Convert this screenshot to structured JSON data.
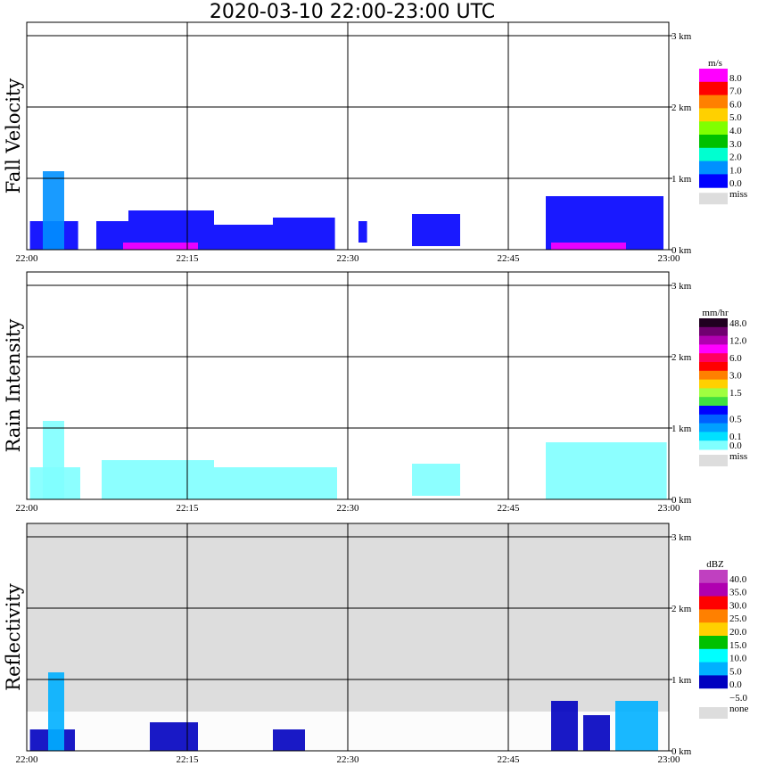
{
  "title": "2020-03-10   22:00-23:00 UTC",
  "chart_data": [
    {
      "type": "heatmap",
      "title": "Fall Velocity",
      "xlim": [
        "22:00",
        "23:00"
      ],
      "x_ticks": [
        "22:00",
        "22:15",
        "22:30",
        "22:45",
        "23:00"
      ],
      "ylim": [
        0,
        3
      ],
      "y_ticks": [
        "3 km",
        "2 km",
        "1 km",
        "0 km"
      ],
      "grid": true,
      "background": "#ffffff",
      "legend": {
        "unit": "m/s",
        "placement": "right",
        "bins": [
          {
            "label": "8.0",
            "color": "#ff00ff"
          },
          {
            "label": "7.0",
            "color": "#ff0000"
          },
          {
            "label": "6.0",
            "color": "#ff8000"
          },
          {
            "label": "5.0",
            "color": "#ffd000"
          },
          {
            "label": "4.0",
            "color": "#80ff00"
          },
          {
            "label": "3.0",
            "color": "#00c000"
          },
          {
            "label": "2.0",
            "color": "#00ffd0"
          },
          {
            "label": "1.0",
            "color": "#0090ff"
          },
          {
            "label": "0.0",
            "color": "#0000ff"
          }
        ],
        "missing": {
          "label": "miss",
          "color": "#dddddd"
        }
      },
      "regions": [
        {
          "t0": 0.3,
          "t1": 4.8,
          "h0": 0.0,
          "h1": 0.4,
          "level": "1.0",
          "color": "#0000ff"
        },
        {
          "t0": 1.5,
          "t1": 3.5,
          "h0": 0.0,
          "h1": 1.1,
          "level": "2.0",
          "color": "#0090ff"
        },
        {
          "t0": 6.5,
          "t1": 9.5,
          "h0": 0.0,
          "h1": 0.4,
          "level": "1.0",
          "color": "#0000ff"
        },
        {
          "t0": 9.5,
          "t1": 17.5,
          "h0": 0.0,
          "h1": 0.55,
          "level": "1.0",
          "color": "#0000ff"
        },
        {
          "t0": 17.5,
          "t1": 23.0,
          "h0": 0.0,
          "h1": 0.35,
          "level": "1.0",
          "color": "#0000ff"
        },
        {
          "t0": 23.0,
          "t1": 28.8,
          "h0": 0.0,
          "h1": 0.45,
          "level": "1.0",
          "color": "#0000ff"
        },
        {
          "t0": 31.0,
          "t1": 31.8,
          "h0": 0.1,
          "h1": 0.4,
          "level": "1.0",
          "color": "#0000ff"
        },
        {
          "t0": 36.0,
          "t1": 40.5,
          "h0": 0.05,
          "h1": 0.5,
          "level": "1.0",
          "color": "#0000ff"
        },
        {
          "t0": 48.5,
          "t1": 59.5,
          "h0": 0.0,
          "h1": 0.75,
          "level": "1.0",
          "color": "#0000ff"
        },
        {
          "t0": 9.0,
          "t1": 16.0,
          "h0": 0.0,
          "h1": 0.1,
          "level": "8.0",
          "color": "#ff00ff"
        },
        {
          "t0": 49.0,
          "t1": 56.0,
          "h0": 0.0,
          "h1": 0.1,
          "level": "8.0",
          "color": "#ff00ff"
        }
      ]
    },
    {
      "type": "heatmap",
      "title": "Rain Intensity",
      "xlim": [
        "22:00",
        "23:00"
      ],
      "x_ticks": [
        "22:00",
        "22:15",
        "22:30",
        "22:45",
        "23:00"
      ],
      "ylim": [
        0,
        3
      ],
      "y_ticks": [
        "3 km",
        "2 km",
        "1 km",
        "0 km"
      ],
      "grid": true,
      "background": "#ffffff",
      "legend": {
        "unit": "mm/hr",
        "placement": "right",
        "bins": [
          {
            "label": "48.0",
            "color": "#200020"
          },
          {
            "label": "",
            "color": "#700070"
          },
          {
            "label": "12.0",
            "color": "#b000b0"
          },
          {
            "label": "",
            "color": "#ff00ff"
          },
          {
            "label": "6.0",
            "color": "#ff0060"
          },
          {
            "label": "",
            "color": "#ff0000"
          },
          {
            "label": "3.0",
            "color": "#ff8000"
          },
          {
            "label": "",
            "color": "#ffd000"
          },
          {
            "label": "1.5",
            "color": "#a0ff40"
          },
          {
            "label": "",
            "color": "#40e040"
          },
          {
            "label": "",
            "color": "#0000ff"
          },
          {
            "label": "0.5",
            "color": "#0060ff"
          },
          {
            "label": "",
            "color": "#00a0ff"
          },
          {
            "label": "0.1",
            "color": "#00e0ff"
          },
          {
            "label": "0.0",
            "color": "#80ffff"
          }
        ],
        "missing": {
          "label": "miss",
          "color": "#dddddd"
        }
      },
      "regions": [
        {
          "t0": 0.3,
          "t1": 5.0,
          "h0": 0.0,
          "h1": 0.45,
          "level": "0.1",
          "color": "#80ffff"
        },
        {
          "t0": 1.5,
          "t1": 3.5,
          "h0": 0.0,
          "h1": 1.1,
          "level": "0.1",
          "color": "#80ffff"
        },
        {
          "t0": 7.0,
          "t1": 17.5,
          "h0": 0.0,
          "h1": 0.55,
          "level": "0.1",
          "color": "#80ffff"
        },
        {
          "t0": 17.5,
          "t1": 29.0,
          "h0": 0.0,
          "h1": 0.45,
          "level": "0.1",
          "color": "#80ffff"
        },
        {
          "t0": 36.0,
          "t1": 40.5,
          "h0": 0.05,
          "h1": 0.5,
          "level": "0.1",
          "color": "#80ffff"
        },
        {
          "t0": 48.5,
          "t1": 59.8,
          "h0": 0.0,
          "h1": 0.8,
          "level": "0.1",
          "color": "#80ffff"
        }
      ]
    },
    {
      "type": "heatmap",
      "title": "Reflectivity",
      "xlim": [
        "22:00",
        "23:00"
      ],
      "x_ticks": [
        "22:00",
        "22:15",
        "22:30",
        "22:45",
        "23:00"
      ],
      "ylim": [
        0,
        3
      ],
      "y_ticks": [
        "3 km",
        "2 km",
        "1 km",
        "0 km"
      ],
      "grid": true,
      "background": "#dddddd",
      "legend": {
        "unit": "dBZ",
        "placement": "right",
        "bins": [
          {
            "label": "40.0",
            "color": "#c040c0"
          },
          {
            "label": "35.0",
            "color": "#b000b0"
          },
          {
            "label": "30.0",
            "color": "#ff0000"
          },
          {
            "label": "25.0",
            "color": "#ff8000"
          },
          {
            "label": "20.0",
            "color": "#ffd000"
          },
          {
            "label": "15.0",
            "color": "#00c000"
          },
          {
            "label": "10.0",
            "color": "#00ffff"
          },
          {
            "label": "5.0",
            "color": "#00b0ff"
          },
          {
            "label": "0.0",
            "color": "#0000c0"
          },
          {
            "label": "−5.0",
            "color": "#ffffff"
          }
        ],
        "missing": {
          "label": "none",
          "color": "#dddddd"
        }
      },
      "regions": [
        {
          "t0": 0.0,
          "t1": 60.0,
          "h0": 0.0,
          "h1": 0.55,
          "level": "-5.0",
          "color": "#ffffff"
        },
        {
          "t0": 0.3,
          "t1": 4.5,
          "h0": 0.0,
          "h1": 0.3,
          "level": "0.0",
          "color": "#0000c0"
        },
        {
          "t0": 2.0,
          "t1": 3.5,
          "h0": 0.0,
          "h1": 1.1,
          "level": "5.0",
          "color": "#00b0ff"
        },
        {
          "t0": 11.5,
          "t1": 16.0,
          "h0": 0.0,
          "h1": 0.4,
          "level": "0.0",
          "color": "#0000c0"
        },
        {
          "t0": 23.0,
          "t1": 26.0,
          "h0": 0.0,
          "h1": 0.3,
          "level": "0.0",
          "color": "#0000c0"
        },
        {
          "t0": 49.0,
          "t1": 51.5,
          "h0": 0.0,
          "h1": 0.7,
          "level": "0.0",
          "color": "#0000c0"
        },
        {
          "t0": 52.0,
          "t1": 54.5,
          "h0": 0.0,
          "h1": 0.5,
          "level": "0.0",
          "color": "#0000c0"
        },
        {
          "t0": 55.0,
          "t1": 59.0,
          "h0": 0.0,
          "h1": 0.7,
          "level": "5.0",
          "color": "#00b0ff"
        }
      ]
    }
  ]
}
